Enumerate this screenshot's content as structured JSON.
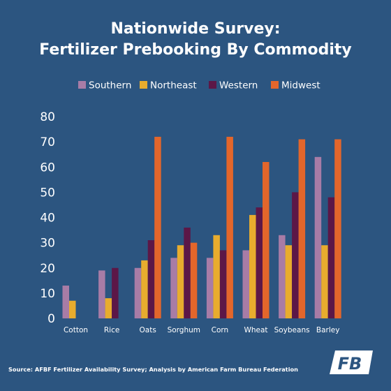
{
  "colors": {
    "background": "#2c5580",
    "text": "#ffffff",
    "Southern": "#a87ca6",
    "Northeast": "#e8ac2e",
    "Western": "#5c1747",
    "Midwest": "#e3662b"
  },
  "chart_data": {
    "type": "bar",
    "title": [
      "Nationwide Survey:",
      "Fertilizer Prebooking By Commodity"
    ],
    "xlabel": "",
    "ylabel": "",
    "categories": [
      "Cotton",
      "Rice",
      "Oats",
      "Sorghum",
      "Corn",
      "Wheat",
      "Soybeans",
      "Barley"
    ],
    "series": [
      {
        "name": "Southern",
        "values": [
          13,
          19,
          20,
          24,
          24,
          27,
          33,
          64
        ]
      },
      {
        "name": "Northeast",
        "values": [
          7,
          8,
          23,
          29,
          33,
          41,
          29,
          29
        ]
      },
      {
        "name": "Western",
        "values": [
          null,
          20,
          31,
          36,
          27,
          44,
          50,
          48
        ]
      },
      {
        "name": "Midwest",
        "values": [
          null,
          null,
          72,
          30,
          72,
          62,
          71,
          71
        ]
      }
    ],
    "ylim": [
      0,
      80
    ],
    "yticks": [
      0,
      10,
      20,
      30,
      40,
      50,
      60,
      70,
      80
    ],
    "grid": false,
    "legend": "top-center"
  },
  "footer": {
    "source": "Source: AFBF Fertilizer Availability Survey; Analysis by American Farm Bureau Federation",
    "logo_text": "FB",
    "logo_icon": "american-farm-bureau-logo"
  }
}
